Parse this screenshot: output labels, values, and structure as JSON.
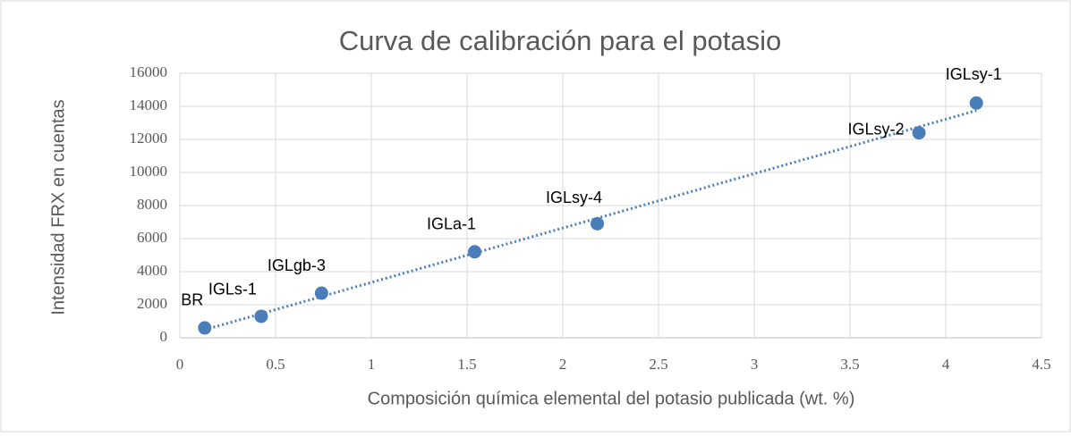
{
  "chart_data": {
    "type": "scatter",
    "title": "Curva de calibración para el potasio",
    "x_label": "Composición química elemental del  potasio publicada (wt. %)",
    "y_label": "Intensidad  FRX  en cuentas",
    "labels": [
      "BR",
      "IGLs-1",
      "IGLgb-3",
      "IGLa-1",
      "IGLsy-4",
      "IGLsy-2",
      "IGLsy-1"
    ],
    "x": [
      0.13,
      0.425,
      0.74,
      1.54,
      2.18,
      3.86,
      4.16
    ],
    "values": [
      600,
      1300,
      2700,
      5200,
      6900,
      12400,
      14200
    ],
    "color": "#4a7ebb",
    "trendline": "linear",
    "grid": true,
    "xlim": [
      0,
      4.5
    ],
    "xticks": [
      0,
      0.5,
      1,
      1.5,
      2,
      2.5,
      3,
      3.5,
      4,
      4.5
    ],
    "ylim": [
      0,
      16000
    ],
    "yticks": [
      0,
      2000,
      4000,
      6000,
      8000,
      10000,
      12000,
      14000,
      16000
    ]
  }
}
